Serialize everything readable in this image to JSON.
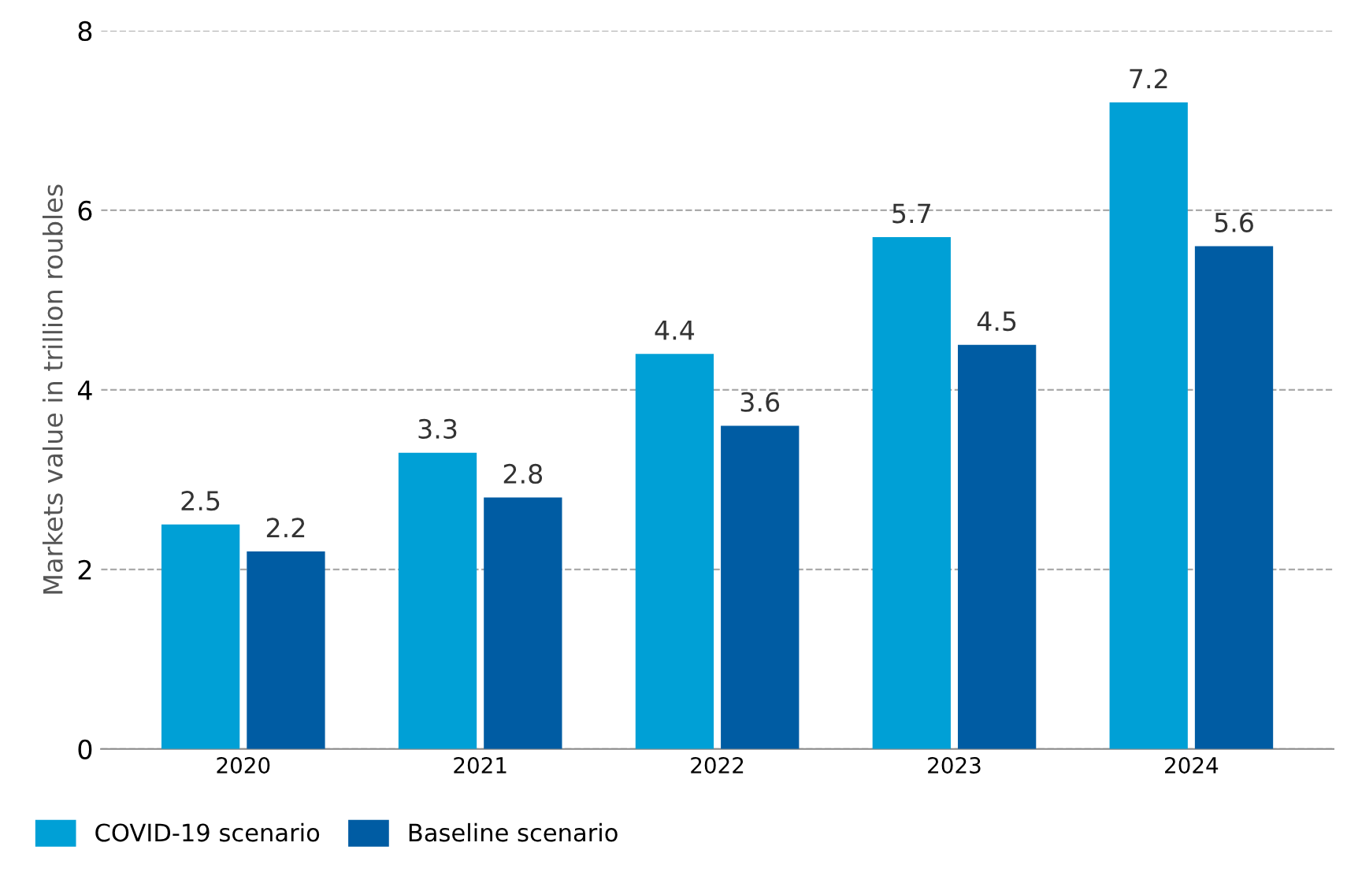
{
  "chart_data": {
    "type": "bar",
    "ylabel": "Markets value in trillion roubles",
    "categories": [
      "2020",
      "2021",
      "2022",
      "2023",
      "2024"
    ],
    "series": [
      {
        "name": "COVID-19 scenario",
        "color": "#00a0d6",
        "values": [
          2.5,
          3.3,
          4.4,
          5.7,
          7.2
        ]
      },
      {
        "name": "Baseline scenario",
        "color": "#005ca3",
        "values": [
          2.2,
          2.8,
          3.6,
          4.5,
          5.6
        ]
      }
    ],
    "ylim": [
      0,
      8
    ],
    "yticks": [
      0,
      2,
      4,
      6,
      8
    ],
    "grid": "y",
    "legend": "bottom left",
    "data_labels": true
  }
}
